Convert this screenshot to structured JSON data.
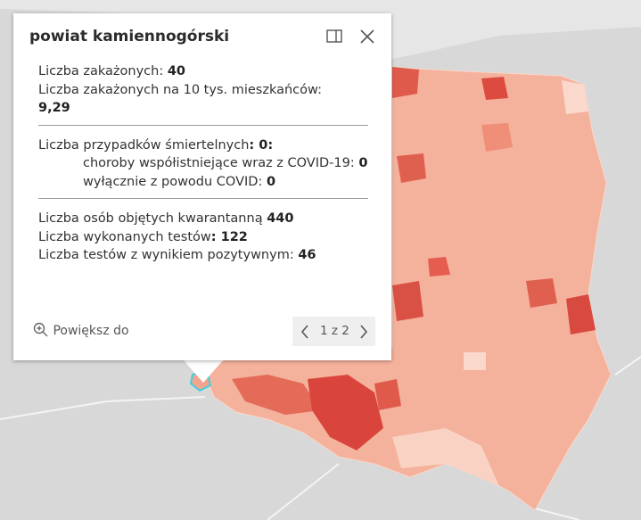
{
  "popup": {
    "title": "powiat kamiennogórski",
    "sections": [
      {
        "rows": [
          {
            "label": "Liczba zakażonych: ",
            "value": "40"
          },
          {
            "label": "Liczba zakażonych na 10 tys. mieszkańców:",
            "value": "9,29"
          }
        ]
      },
      {
        "rows": [
          {
            "label": "Liczba przypadków śmiertelnych",
            "value": ": 0:"
          },
          {
            "label": "choroby współistniejące wraz z COVID-19: ",
            "value": "0"
          },
          {
            "label": "wyłącznie z powodu COVID: ",
            "value": "0"
          }
        ]
      },
      {
        "rows": [
          {
            "label": "Liczba osób objętych kwarantanną ",
            "value": "440"
          },
          {
            "label": "Liczba wykonanych testów",
            "value": ": 122"
          },
          {
            "label": "Liczba testów z wynikiem pozytywnym: ",
            "value": "46"
          }
        ]
      }
    ],
    "zoom": "Powiększ do",
    "pager": "1 z 2"
  }
}
